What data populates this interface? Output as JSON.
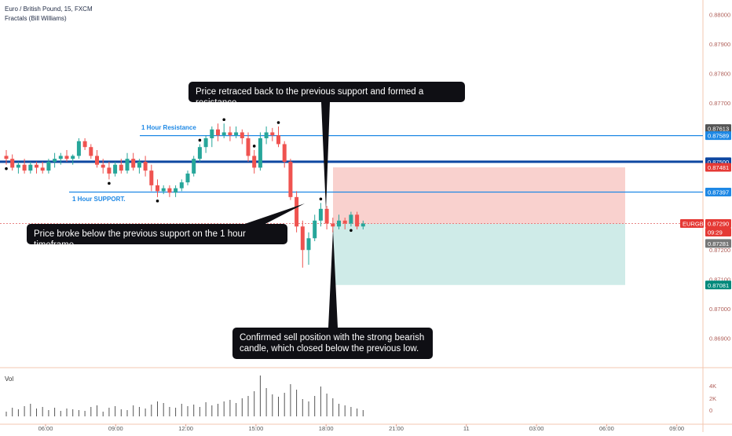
{
  "header": {
    "symbol_title": "Euro / British Pound, 15, FXCM",
    "indicator": "Fractals (Bill Williams)"
  },
  "colors": {
    "up": "#26a69a",
    "down": "#ef5350",
    "level_line": "#1e88e5",
    "main_level": "#0d47a1",
    "stop_zone": "#f8c9c6",
    "target_zone": "#c7e8e4",
    "callout_bg": "#0f0f14",
    "axis_text": "#b0605a"
  },
  "annotations": {
    "retrace_callout": "Price retraced back to the previous support and formed a resistance.",
    "break_callout": "Price broke below the previous support on the 1 hour timeframe.",
    "sell_callout": "Confirmed sell position with the strong bearish\ncandle, which closed below the previous low.",
    "resistance_label": "1 Hour Resistance",
    "support_label": "1 Hour SUPPORT."
  },
  "volume_label": "Vol",
  "price_axis": {
    "ticks": [
      "0.88000",
      "0.87900",
      "0.87800",
      "0.87700",
      "0.87600",
      "0.87500",
      "0.87300",
      "0.87200",
      "0.87100",
      "0.87000",
      "0.86900"
    ],
    "badges": [
      {
        "text": "0.87613",
        "bg": "#555555"
      },
      {
        "text": "0.87589",
        "bg": "#1e88e5"
      },
      {
        "text": "0.87500",
        "bg": "#0d47a1"
      },
      {
        "text": "0.87481",
        "bg": "#e53935"
      },
      {
        "text": "0.87397",
        "bg": "#1e88e5"
      },
      {
        "text": "EURGBP",
        "bg": "#e53935"
      },
      {
        "text": "0.87290",
        "bg": "#e53935"
      },
      {
        "text": "09:29",
        "bg": "#e53935"
      },
      {
        "text": "0.87281",
        "bg": "#777777"
      },
      {
        "text": "0.87081",
        "bg": "#00897b"
      }
    ]
  },
  "volume_axis": {
    "ticks": [
      "4K",
      "2K",
      "0"
    ]
  },
  "time_axis": {
    "ticks": [
      "06:00",
      "09:00",
      "12:00",
      "15:00",
      "18:00",
      "21:00",
      "11",
      "03:00",
      "06:00",
      "09:00"
    ]
  },
  "chart_data": {
    "type": "candlestick",
    "symbol": "EURGBP",
    "interval": "15",
    "ylim": [
      0.868,
      0.8805
    ],
    "levels": {
      "resistance_1h": 0.87589,
      "main_level": 0.875,
      "support_1h": 0.87397,
      "entry": 0.8729,
      "stop": 0.87481,
      "target": 0.87081
    },
    "candles": [
      [
        0.8752,
        0.8754,
        0.8749,
        0.8751
      ],
      [
        0.8751,
        0.87525,
        0.8747,
        0.8748
      ],
      [
        0.8748,
        0.875,
        0.8746,
        0.8749
      ],
      [
        0.8749,
        0.8751,
        0.8746,
        0.8747
      ],
      [
        0.8747,
        0.875,
        0.8746,
        0.8749
      ],
      [
        0.8749,
        0.875,
        0.8746,
        0.8748
      ],
      [
        0.8748,
        0.875,
        0.8746,
        0.8747
      ],
      [
        0.8747,
        0.8751,
        0.8746,
        0.875
      ],
      [
        0.875,
        0.8753,
        0.8748,
        0.8751
      ],
      [
        0.8751,
        0.8753,
        0.8749,
        0.8752
      ],
      [
        0.8752,
        0.8754,
        0.875,
        0.8751
      ],
      [
        0.8751,
        0.87525,
        0.8749,
        0.8752
      ],
      [
        0.8752,
        0.8758,
        0.8751,
        0.8757
      ],
      [
        0.8757,
        0.8758,
        0.8754,
        0.8755
      ],
      [
        0.8755,
        0.8756,
        0.8751,
        0.8752
      ],
      [
        0.8752,
        0.8754,
        0.8748,
        0.8749
      ],
      [
        0.8749,
        0.8751,
        0.8746,
        0.8748
      ],
      [
        0.8748,
        0.875,
        0.8744,
        0.8746
      ],
      [
        0.8746,
        0.875,
        0.8745,
        0.8749
      ],
      [
        0.8749,
        0.8751,
        0.8746,
        0.8747
      ],
      [
        0.8747,
        0.8753,
        0.8746,
        0.8751
      ],
      [
        0.8751,
        0.8753,
        0.8747,
        0.8748
      ],
      [
        0.8748,
        0.8751,
        0.8746,
        0.875
      ],
      [
        0.875,
        0.8752,
        0.8745,
        0.8747
      ],
      [
        0.8747,
        0.8749,
        0.874,
        0.8742
      ],
      [
        0.8742,
        0.8744,
        0.8738,
        0.874
      ],
      [
        0.874,
        0.8742,
        0.8739,
        0.8741
      ],
      [
        0.8741,
        0.8742,
        0.8738,
        0.87395
      ],
      [
        0.87395,
        0.8742,
        0.8738,
        0.8741
      ],
      [
        0.8741,
        0.8744,
        0.874,
        0.8743
      ],
      [
        0.8743,
        0.8747,
        0.8742,
        0.8746
      ],
      [
        0.8746,
        0.8752,
        0.8745,
        0.8751
      ],
      [
        0.8751,
        0.8756,
        0.875,
        0.8755
      ],
      [
        0.8755,
        0.8759,
        0.8753,
        0.8758
      ],
      [
        0.8758,
        0.8762,
        0.8755,
        0.8761
      ],
      [
        0.8761,
        0.8763,
        0.8757,
        0.8759
      ],
      [
        0.8759,
        0.8763,
        0.8758,
        0.876
      ],
      [
        0.876,
        0.8762,
        0.8757,
        0.8759
      ],
      [
        0.8759,
        0.8762,
        0.8758,
        0.876
      ],
      [
        0.876,
        0.8761,
        0.8756,
        0.8758
      ],
      [
        0.8758,
        0.876,
        0.875,
        0.8752
      ],
      [
        0.8752,
        0.8754,
        0.8746,
        0.8748
      ],
      [
        0.8748,
        0.876,
        0.8747,
        0.8758
      ],
      [
        0.8758,
        0.8762,
        0.8756,
        0.876
      ],
      [
        0.876,
        0.87615,
        0.8757,
        0.8759
      ],
      [
        0.8759,
        0.8762,
        0.8755,
        0.8756
      ],
      [
        0.8756,
        0.8757,
        0.8748,
        0.875
      ],
      [
        0.875,
        0.8751,
        0.8737,
        0.8738
      ],
      [
        0.8738,
        0.874,
        0.8726,
        0.8728
      ],
      [
        0.8728,
        0.873,
        0.8714,
        0.872
      ],
      [
        0.872,
        0.8726,
        0.8715,
        0.8724
      ],
      [
        0.8724,
        0.8732,
        0.8723,
        0.873
      ],
      [
        0.873,
        0.8736,
        0.8728,
        0.8734
      ],
      [
        0.8734,
        0.8735,
        0.8727,
        0.8729
      ],
      [
        0.8729,
        0.8731,
        0.8726,
        0.8728
      ],
      [
        0.8728,
        0.8732,
        0.8727,
        0.873
      ],
      [
        0.873,
        0.8731,
        0.8727,
        0.8729
      ],
      [
        0.8729,
        0.8733,
        0.8728,
        0.8732
      ],
      [
        0.8732,
        0.8733,
        0.8727,
        0.8728
      ],
      [
        0.8728,
        0.873,
        0.8727,
        0.8729
      ]
    ],
    "volume": [
      0.6,
      1.1,
      0.9,
      1.3,
      1.6,
      1.0,
      1.2,
      0.8,
      1.1,
      0.7,
      1.0,
      0.9,
      0.8,
      0.7,
      1.2,
      1.4,
      0.6,
      1.1,
      1.3,
      0.9,
      0.8,
      1.4,
      1.2,
      1.0,
      1.5,
      1.9,
      1.7,
      1.2,
      1.1,
      1.6,
      1.3,
      1.5,
      1.2,
      1.8,
      1.4,
      1.6,
      1.9,
      2.1,
      1.7,
      2.3,
      2.6,
      3.2,
      5.2,
      3.6,
      2.8,
      2.5,
      3.0,
      4.1,
      3.4,
      2.2,
      1.9,
      2.6,
      3.8,
      2.9,
      2.3,
      1.6,
      1.4,
      1.2,
      1.0,
      0.8
    ],
    "fractals_up": [
      32,
      36,
      41,
      45,
      52
    ],
    "fractals_down": [
      0,
      17,
      25,
      57
    ]
  }
}
